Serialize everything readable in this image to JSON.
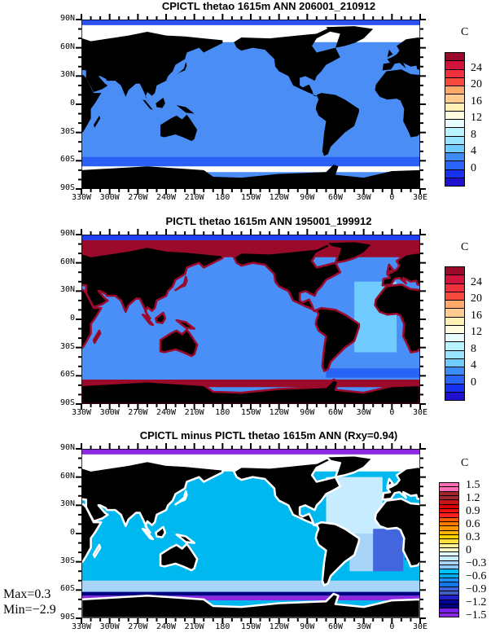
{
  "panels": [
    {
      "title": "CPICTL thetao 1615m ANN 206001_210912",
      "unit": "C",
      "colorbar": {
        "labels": [
          "24",
          "20",
          "16",
          "12",
          "8",
          "4",
          "0"
        ],
        "colors": [
          "#9b0a2a",
          "#d0143c",
          "#f0303c",
          "#f84a3c",
          "#ffa868",
          "#ffcc90",
          "#fff0b4",
          "#fffce0",
          "#e8fcff",
          "#b8f4ff",
          "#98e4ff",
          "#70ccff",
          "#3c8cf8",
          "#2864f8",
          "#1830f0",
          "#2010d0"
        ]
      }
    },
    {
      "title": "PICTL thetao 1615m ANN 195001_199912",
      "unit": "C",
      "colorbar": {
        "labels": [
          "24",
          "20",
          "16",
          "12",
          "8",
          "4",
          "0"
        ],
        "colors": [
          "#9b0a2a",
          "#d0143c",
          "#f0303c",
          "#f84a3c",
          "#ffa868",
          "#ffcc90",
          "#fff0b4",
          "#fffce0",
          "#e8fcff",
          "#b8f4ff",
          "#98e4ff",
          "#70ccff",
          "#3c8cf8",
          "#2864f8",
          "#1830f0",
          "#2010d0"
        ]
      }
    },
    {
      "title": "CPICTL minus PICTL thetao 1615m ANN (Rxy=0.94)",
      "unit": "C",
      "colorbar": {
        "labels": [
          "1.5",
          "1.2",
          "0.9",
          "0.6",
          "0.3",
          "0",
          "−0.3",
          "−0.6",
          "−0.9",
          "−1.2",
          "−1.5"
        ],
        "colors": [
          "#ff6eb4",
          "#ff6eb4",
          "#a0282c",
          "#a0282c",
          "#c81414",
          "#dc0000",
          "#f01010",
          "#ff2020",
          "#ff5a00",
          "#ff7800",
          "#ff9600",
          "#ffb400",
          "#ffd200",
          "#ffe040",
          "#fff096",
          "#fffac8",
          "#e0f8ff",
          "#c8ecff",
          "#a8d4f8",
          "#90c8f8",
          "#00c0ff",
          "#00a8f0",
          "#1e90ff",
          "#1478e8",
          "#3c64d8",
          "#4060c0",
          "#2020c8",
          "#0000a0",
          "#000080",
          "#7820e8",
          "#8c28e0"
        ]
      }
    }
  ],
  "lat_labels": [
    "90N",
    "60N",
    "30N",
    "0",
    "30S",
    "60S",
    "90S"
  ],
  "lon_labels": [
    "330W",
    "300W",
    "270W",
    "240W",
    "210W",
    "180",
    "150W",
    "120W",
    "90W",
    "60W",
    "30W",
    "0",
    "30E"
  ],
  "stats": {
    "max": "Max=0.3",
    "min": "Min=−2.9"
  }
}
